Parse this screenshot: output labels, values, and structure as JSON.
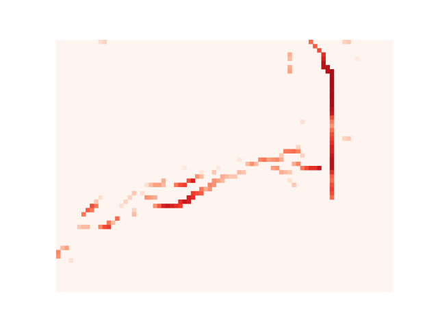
{
  "chart_data": {
    "type": "heatmap",
    "title": "",
    "xlabel": "",
    "ylabel": "",
    "axes_visible": false,
    "grid": false,
    "legend": "none",
    "colormap": "Reds",
    "background_value_color": "#fff5f0",
    "value_range": [
      0,
      1
    ],
    "grid_size": {
      "columns": 80,
      "rows": 60
    },
    "colors": {
      "low": "#fff5f0",
      "light": "#fdd4c2",
      "mid": "#fc8a6a",
      "high": "#e32f27",
      "max": "#a50f15"
    },
    "cells": [
      [
        0,
        50,
        0.5
      ],
      [
        0,
        51,
        0.45
      ],
      [
        1,
        49,
        0.3
      ],
      [
        2,
        49,
        0.4
      ],
      [
        3,
        52,
        0.15
      ],
      [
        5,
        44,
        0.25
      ],
      [
        6,
        44,
        0.3
      ],
      [
        7,
        44,
        0.3
      ],
      [
        6,
        41,
        0.55
      ],
      [
        7,
        40,
        0.65
      ],
      [
        8,
        40,
        0.55
      ],
      [
        8,
        39,
        0.7
      ],
      [
        9,
        39,
        0.55
      ],
      [
        9,
        38,
        0.25
      ],
      [
        10,
        37,
        0.15
      ],
      [
        10,
        44,
        0.5
      ],
      [
        11,
        44,
        0.7
      ],
      [
        12,
        44,
        0.75
      ],
      [
        12,
        43,
        0.55
      ],
      [
        13,
        43,
        0.3
      ],
      [
        14,
        42,
        0.6
      ],
      [
        15,
        39,
        0.15
      ],
      [
        16,
        38,
        0.2
      ],
      [
        17,
        37,
        0.2
      ],
      [
        18,
        36,
        0.25
      ],
      [
        18,
        40,
        0.2
      ],
      [
        18,
        41,
        0.3
      ],
      [
        20,
        36,
        0.15
      ],
      [
        21,
        34,
        0.15
      ],
      [
        22,
        34,
        0.3
      ],
      [
        23,
        34,
        0.4
      ],
      [
        24,
        34,
        0.4
      ],
      [
        25,
        34,
        0.3
      ],
      [
        25,
        33,
        0.35
      ],
      [
        21,
        37,
        0.45
      ],
      [
        22,
        37,
        0.4
      ],
      [
        23,
        37,
        0.35
      ],
      [
        23,
        39,
        0.45
      ],
      [
        24,
        39,
        0.65
      ],
      [
        25,
        39,
        0.85
      ],
      [
        26,
        39,
        0.9
      ],
      [
        27,
        39,
        0.85
      ],
      [
        28,
        39,
        0.8
      ],
      [
        29,
        39,
        0.75
      ],
      [
        29,
        38,
        0.8
      ],
      [
        30,
        38,
        0.9
      ],
      [
        31,
        38,
        0.85
      ],
      [
        31,
        37,
        0.85
      ],
      [
        32,
        37,
        0.8
      ],
      [
        32,
        36,
        0.75
      ],
      [
        33,
        36,
        0.7
      ],
      [
        34,
        36,
        0.65
      ],
      [
        34,
        35,
        0.55
      ],
      [
        35,
        35,
        0.55
      ],
      [
        36,
        35,
        0.45
      ],
      [
        36,
        34,
        0.5
      ],
      [
        37,
        34,
        0.45
      ],
      [
        37,
        33,
        0.45
      ],
      [
        38,
        33,
        0.4
      ],
      [
        39,
        33,
        0.3
      ],
      [
        39,
        32,
        0.35
      ],
      [
        40,
        32,
        0.3
      ],
      [
        41,
        32,
        0.25
      ],
      [
        42,
        32,
        0.25
      ],
      [
        43,
        31,
        0.3
      ],
      [
        44,
        31,
        0.25
      ],
      [
        28,
        34,
        0.55
      ],
      [
        29,
        34,
        0.7
      ],
      [
        30,
        34,
        0.75
      ],
      [
        31,
        33,
        0.7
      ],
      [
        32,
        33,
        0.85
      ],
      [
        33,
        32,
        0.45
      ],
      [
        34,
        32,
        0.3
      ],
      [
        35,
        35,
        0.35
      ],
      [
        37,
        31,
        0.25
      ],
      [
        30,
        30,
        0.1
      ],
      [
        34,
        31,
        0.1
      ],
      [
        38,
        30,
        0.1
      ],
      [
        43,
        28,
        0.1
      ],
      [
        45,
        29,
        0.3
      ],
      [
        46,
        29,
        0.45
      ],
      [
        47,
        29,
        0.3
      ],
      [
        48,
        28,
        0.5
      ],
      [
        49,
        28,
        0.55
      ],
      [
        50,
        28,
        0.4
      ],
      [
        51,
        28,
        0.45
      ],
      [
        52,
        28,
        0.5
      ],
      [
        53,
        28,
        0.35
      ],
      [
        51,
        30,
        0.4
      ],
      [
        52,
        30,
        0.45
      ],
      [
        53,
        31,
        0.35
      ],
      [
        54,
        31,
        0.3
      ],
      [
        55,
        31,
        0.25
      ],
      [
        53,
        27,
        0.25
      ],
      [
        54,
        26,
        0.55
      ],
      [
        55,
        26,
        0.55
      ],
      [
        56,
        26,
        0.6
      ],
      [
        57,
        26,
        0.5
      ],
      [
        58,
        27,
        0.2
      ],
      [
        56,
        29,
        0.35
      ],
      [
        57,
        29,
        0.5
      ],
      [
        58,
        30,
        0.55
      ],
      [
        59,
        30,
        0.7
      ],
      [
        60,
        30,
        0.8
      ],
      [
        61,
        30,
        0.8
      ],
      [
        62,
        30,
        0.9
      ],
      [
        55,
        33,
        0.15
      ],
      [
        56,
        34,
        0.25
      ],
      [
        55,
        26,
        0.55
      ],
      [
        57,
        25,
        0.2
      ],
      [
        55,
        3,
        0.35
      ],
      [
        55,
        4,
        0.3
      ],
      [
        55,
        6,
        0.35
      ],
      [
        55,
        7,
        0.4
      ],
      [
        60,
        0,
        0.6
      ],
      [
        61,
        1,
        0.65
      ],
      [
        62,
        2,
        0.7
      ],
      [
        63,
        3,
        0.8
      ],
      [
        63,
        4,
        0.85
      ],
      [
        63,
        5,
        0.95
      ],
      [
        63,
        6,
        0.95
      ],
      [
        64,
        6,
        0.95
      ],
      [
        64,
        7,
        0.95
      ],
      [
        65,
        7,
        1.0
      ],
      [
        65,
        8,
        1.0
      ],
      [
        65,
        9,
        1.0
      ],
      [
        65,
        10,
        1.0
      ],
      [
        65,
        11,
        1.0
      ],
      [
        65,
        12,
        1.0
      ],
      [
        65,
        13,
        1.0
      ],
      [
        65,
        14,
        1.0
      ],
      [
        65,
        15,
        1.0
      ],
      [
        65,
        16,
        0.95
      ],
      [
        65,
        17,
        0.9
      ],
      [
        65,
        18,
        0.7
      ],
      [
        65,
        19,
        0.55
      ],
      [
        65,
        20,
        0.45
      ],
      [
        65,
        21,
        0.6
      ],
      [
        65,
        22,
        0.7
      ],
      [
        65,
        23,
        0.75
      ],
      [
        65,
        24,
        0.8
      ],
      [
        65,
        25,
        0.85
      ],
      [
        65,
        26,
        0.85
      ],
      [
        65,
        27,
        0.9
      ],
      [
        65,
        28,
        0.95
      ],
      [
        65,
        29,
        0.95
      ],
      [
        65,
        30,
        0.95
      ],
      [
        65,
        31,
        0.8
      ],
      [
        65,
        32,
        0.65
      ],
      [
        65,
        33,
        0.6
      ],
      [
        65,
        34,
        0.7
      ],
      [
        65,
        35,
        0.75
      ],
      [
        65,
        36,
        0.7
      ],
      [
        65,
        37,
        0.6
      ],
      [
        10,
        0,
        0.15
      ],
      [
        11,
        0,
        0.2
      ],
      [
        68,
        0,
        0.2
      ],
      [
        69,
        0,
        0.25
      ],
      [
        71,
        4,
        0.1
      ],
      [
        68,
        23,
        0.2
      ],
      [
        69,
        23,
        0.25
      ],
      [
        58,
        19,
        0.15
      ]
    ]
  }
}
